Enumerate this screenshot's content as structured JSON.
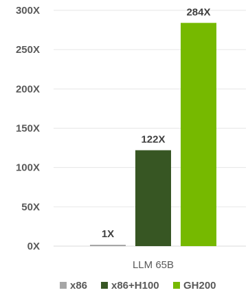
{
  "chart_data": {
    "type": "bar",
    "categories": [
      "LLM 65B"
    ],
    "series": [
      {
        "name": "x86",
        "values": [
          1
        ],
        "color": "#a6a6a6",
        "value_label": "1X"
      },
      {
        "name": "x86+H100",
        "values": [
          122
        ],
        "color": "#375623",
        "value_label": "122X"
      },
      {
        "name": "GH200",
        "values": [
          284
        ],
        "color": "#76b900",
        "value_label": "284X"
      }
    ],
    "yticks": [
      {
        "value": 0,
        "label": "0X"
      },
      {
        "value": 50,
        "label": "50X"
      },
      {
        "value": 100,
        "label": "100X"
      },
      {
        "value": 150,
        "label": "150X"
      },
      {
        "value": 200,
        "label": "200X"
      },
      {
        "value": 250,
        "label": "250X"
      },
      {
        "value": 300,
        "label": "300X"
      }
    ],
    "ylim": [
      0,
      300
    ],
    "grid": true,
    "legend_position": "bottom"
  }
}
